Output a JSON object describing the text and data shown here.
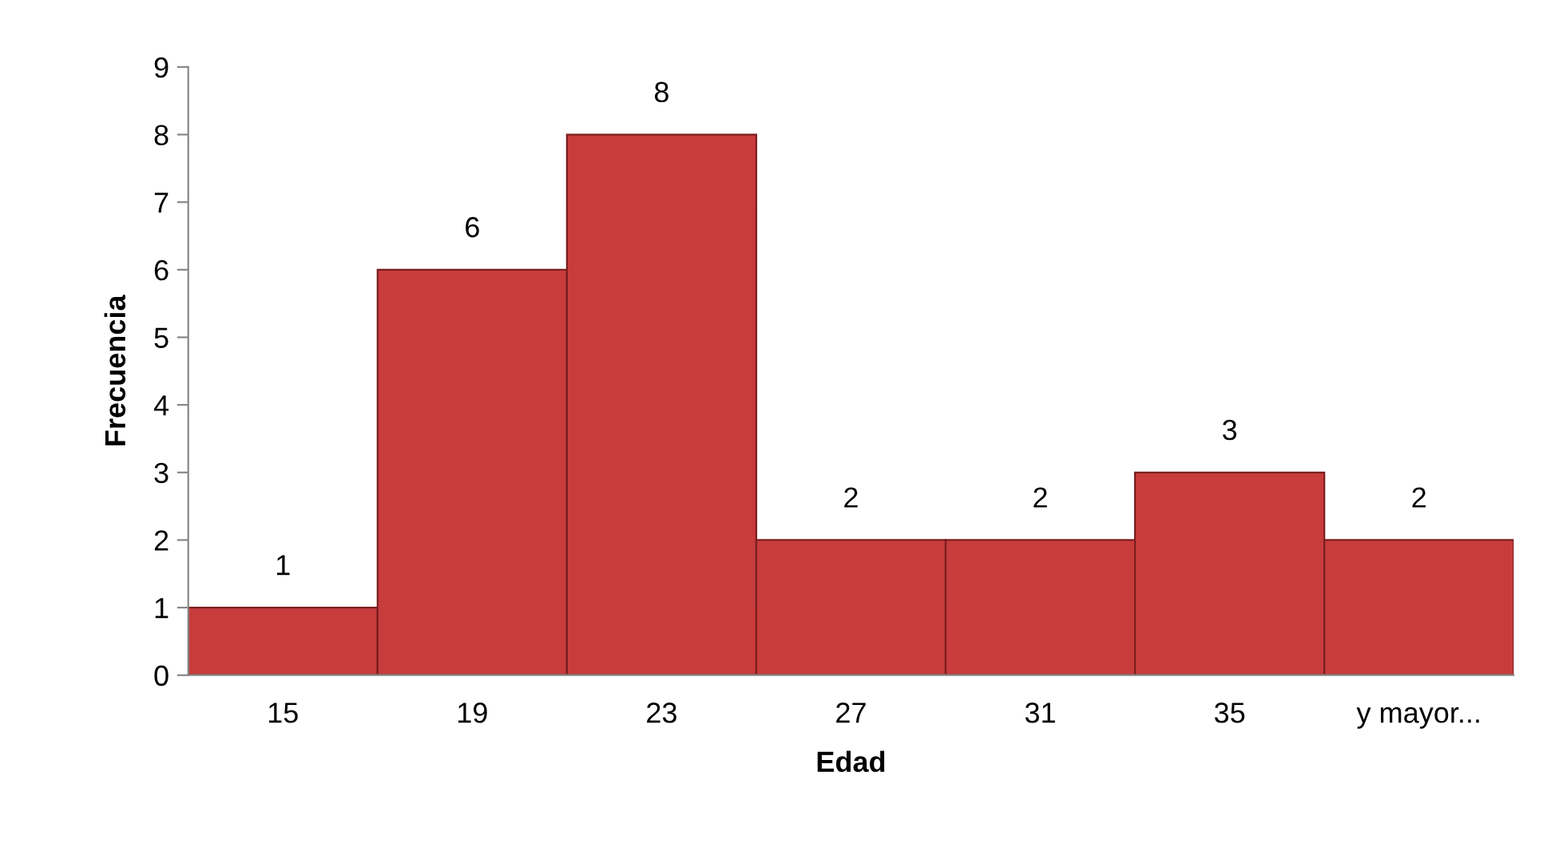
{
  "chart_data": {
    "type": "bar",
    "xlabel": "Edad",
    "ylabel": "Frecuencia",
    "categories": [
      "15",
      "19",
      "23",
      "27",
      "31",
      "35",
      "y mayor..."
    ],
    "values": [
      1,
      6,
      8,
      2,
      2,
      3,
      2
    ],
    "color": "#c83c3c",
    "ylim": [
      0,
      9
    ],
    "yticks": [
      0,
      1,
      2,
      3,
      4,
      5,
      6,
      7,
      8,
      9
    ],
    "grid": false,
    "data_labels": true
  }
}
